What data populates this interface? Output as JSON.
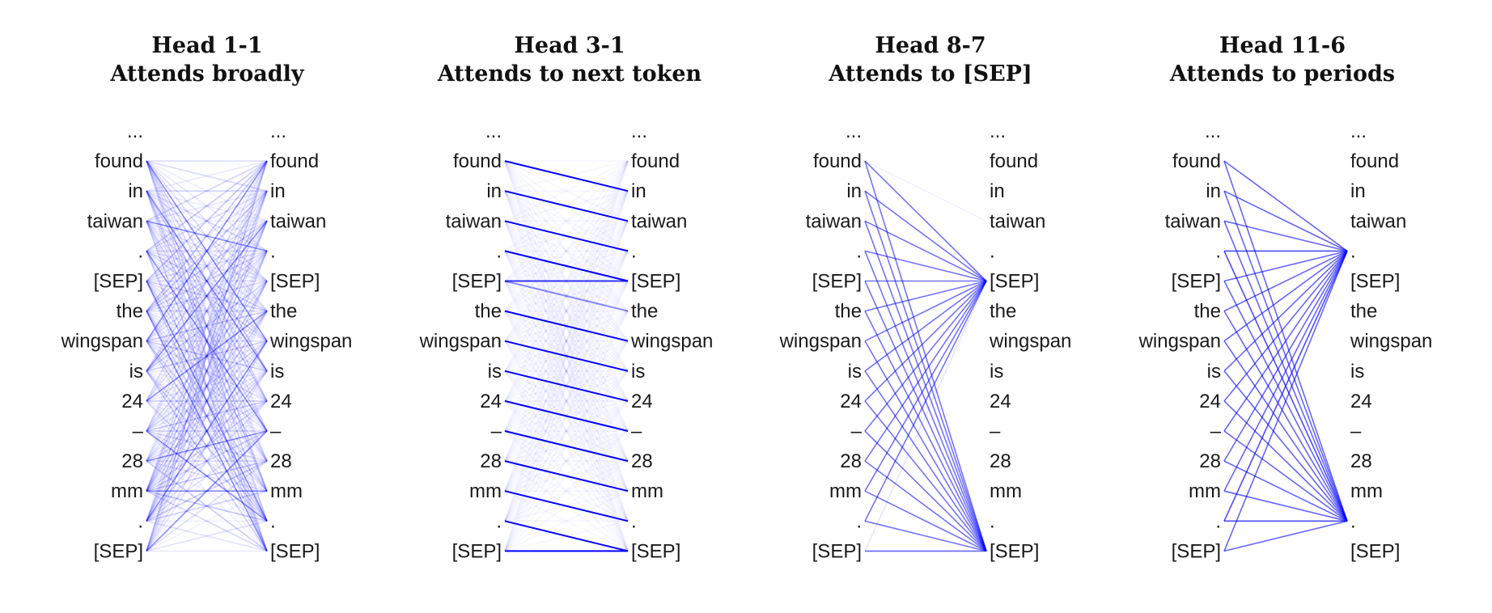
{
  "tokens": [
    "...",
    "found",
    "in",
    "taiwan",
    ".",
    "[SEP]",
    "the",
    "wingspan",
    "is",
    "24",
    "–",
    "28",
    "mm",
    ".",
    "[SEP]"
  ],
  "line_color": "#0000ff",
  "panels": [
    {
      "title": "Head 1-1",
      "subtitle": "Attends broadly",
      "pattern": "broad"
    },
    {
      "title": "Head 3-1",
      "subtitle": "Attends to next token",
      "pattern": "next"
    },
    {
      "title": "Head 8-7",
      "subtitle": "Attends to [SEP]",
      "pattern": "sep"
    },
    {
      "title": "Head 11-6",
      "subtitle": "Attends to periods",
      "pattern": "periods"
    }
  ]
}
